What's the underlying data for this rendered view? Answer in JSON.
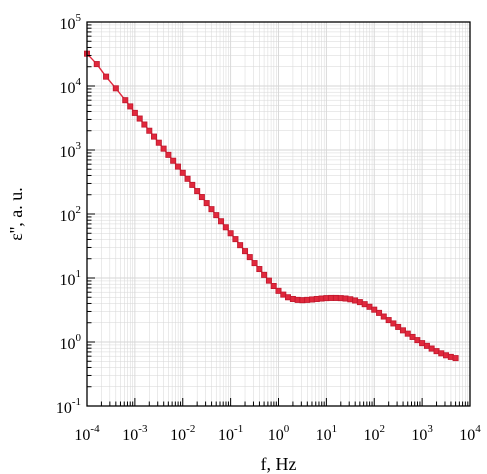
{
  "chart_data": {
    "type": "line",
    "title": "",
    "xlabel": "f, Hz",
    "ylabel": "ε'', a. u.",
    "x_scale": "log",
    "y_scale": "log",
    "xlim": [
      0.0001,
      10000
    ],
    "ylim": [
      0.1,
      100000
    ],
    "grid": true,
    "x_tick_labels": [
      {
        "base": "10",
        "exp": "-4"
      },
      {
        "base": "10",
        "exp": "-3"
      },
      {
        "base": "10",
        "exp": "-2"
      },
      {
        "base": "10",
        "exp": "-1"
      },
      {
        "base": "10",
        "exp": "0"
      },
      {
        "base": "10",
        "exp": "1"
      },
      {
        "base": "10",
        "exp": "2"
      },
      {
        "base": "10",
        "exp": "3"
      },
      {
        "base": "10",
        "exp": "4"
      }
    ],
    "y_tick_labels": [
      {
        "base": "10",
        "exp": "-1"
      },
      {
        "base": "10",
        "exp": "0"
      },
      {
        "base": "10",
        "exp": "1"
      },
      {
        "base": "10",
        "exp": "2"
      },
      {
        "base": "10",
        "exp": "3"
      },
      {
        "base": "10",
        "exp": "4"
      },
      {
        "base": "10",
        "exp": "5"
      }
    ],
    "colors": {
      "series": "#e0283c",
      "marker_edge": "#c0182c",
      "grid": "#d6d6d6",
      "axis": "#000000"
    },
    "series": [
      {
        "marker": "square",
        "x": [
          0.0001,
          0.00016,
          0.00025,
          0.0004,
          0.00063,
          0.0008,
          0.001,
          0.00126,
          0.00158,
          0.002,
          0.00251,
          0.00316,
          0.00398,
          0.00501,
          0.00631,
          0.00794,
          0.01,
          0.0126,
          0.0158,
          0.02,
          0.0251,
          0.0316,
          0.0398,
          0.0501,
          0.0631,
          0.0794,
          0.1,
          0.126,
          0.158,
          0.2,
          0.251,
          0.316,
          0.398,
          0.501,
          0.631,
          0.794,
          1,
          1.26,
          1.58,
          2,
          2.51,
          3.16,
          3.98,
          5.01,
          6.31,
          7.94,
          10,
          12.6,
          15.8,
          20,
          25.1,
          31.6,
          39.8,
          50.1,
          63.1,
          79.4,
          100,
          126,
          158,
          200,
          251,
          316,
          398,
          501,
          631,
          794,
          1000,
          1260,
          1580,
          2000,
          2510,
          3160,
          3980,
          5000
        ],
        "y": [
          32000,
          22000,
          14000,
          9200,
          6000,
          4800,
          3800,
          3100,
          2500,
          2000,
          1620,
          1300,
          1050,
          840,
          680,
          550,
          440,
          355,
          285,
          228,
          184,
          148,
          119,
          96,
          77,
          62,
          50,
          40.5,
          32.6,
          26.3,
          21.2,
          17.1,
          13.8,
          11.2,
          9.1,
          7.5,
          6.3,
          5.5,
          5.0,
          4.7,
          4.55,
          4.5,
          4.55,
          4.62,
          4.7,
          4.78,
          4.85,
          4.88,
          4.88,
          4.85,
          4.78,
          4.65,
          4.45,
          4.2,
          3.9,
          3.55,
          3.2,
          2.85,
          2.5,
          2.2,
          1.95,
          1.72,
          1.52,
          1.35,
          1.2,
          1.07,
          0.96,
          0.87,
          0.79,
          0.72,
          0.665,
          0.62,
          0.585,
          0.56
        ]
      }
    ]
  }
}
